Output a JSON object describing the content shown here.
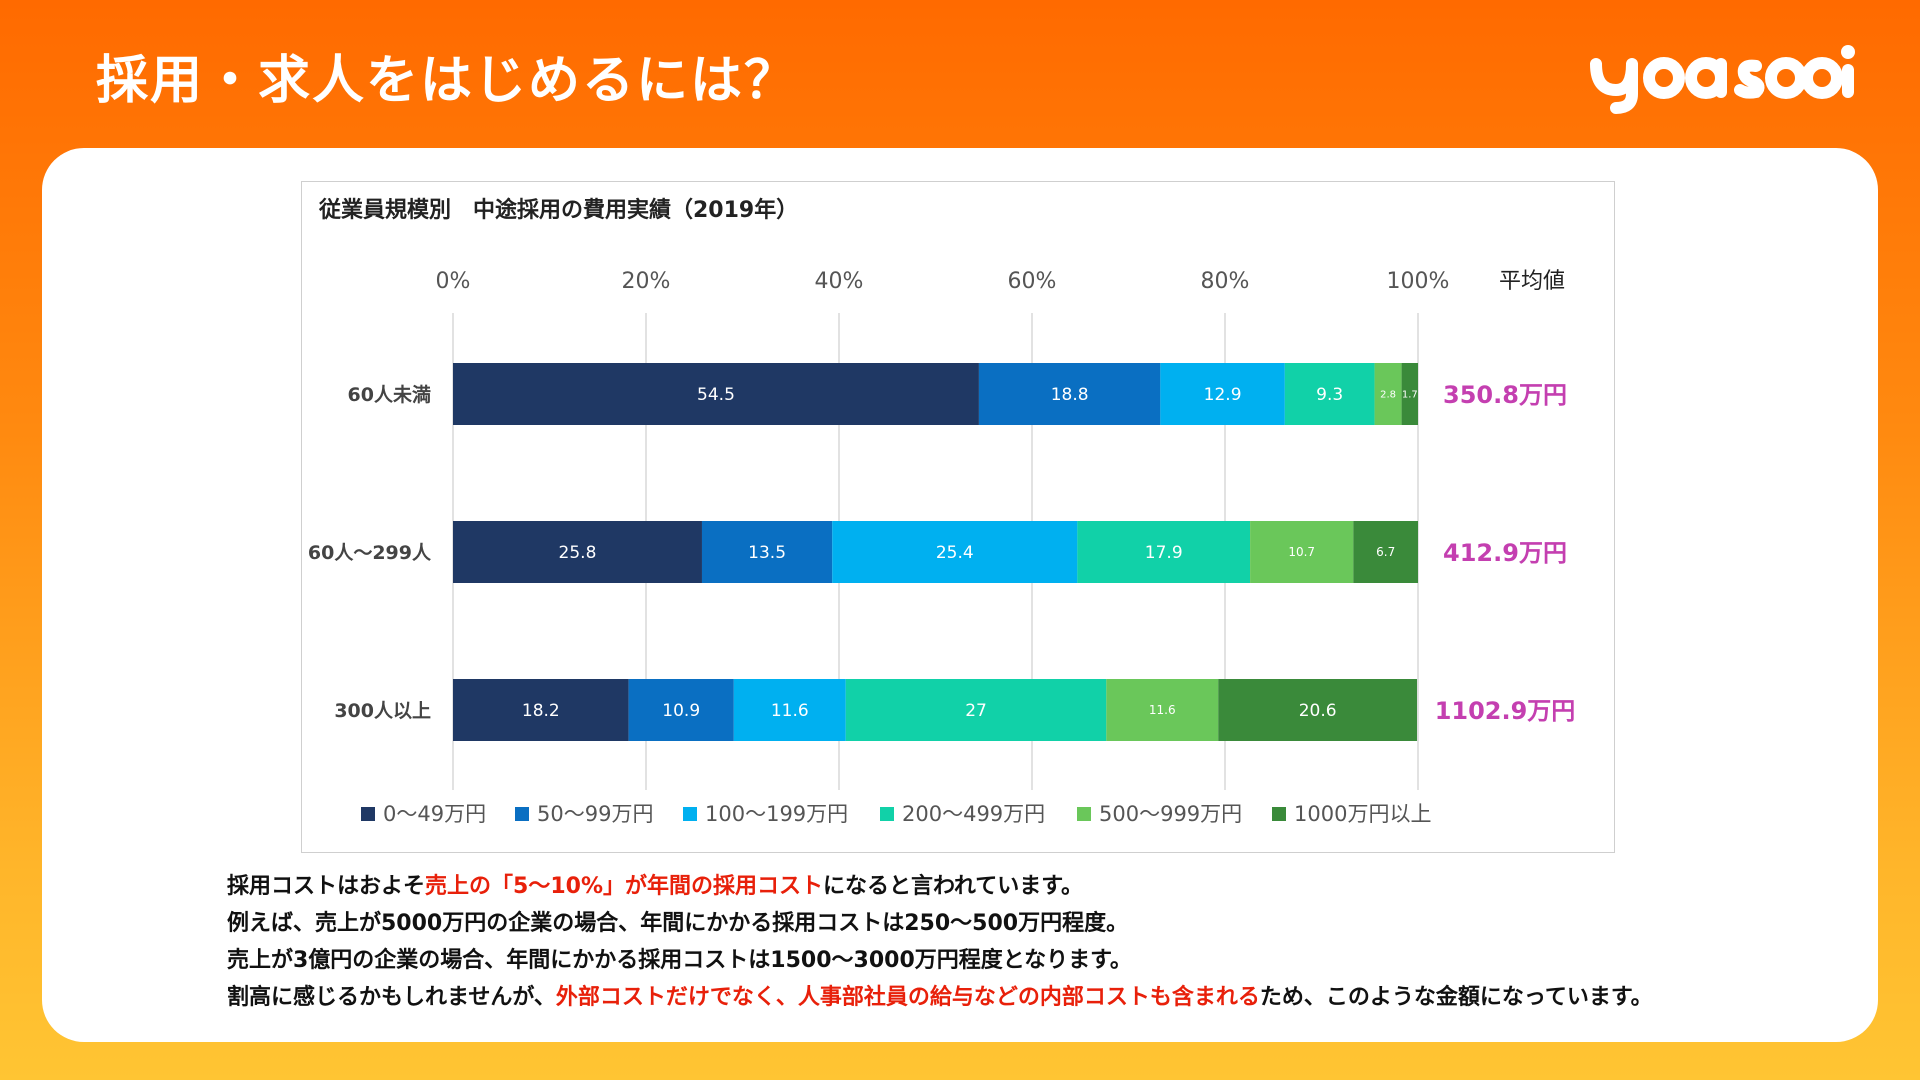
{
  "header": {
    "title": "採用・求人をはじめるには？",
    "logo_text": "yoasobi"
  },
  "colors": {
    "title_text": "#ffffff",
    "highlight": "#e8200a",
    "average_value": "#c43fb0",
    "series": [
      "#1f3864",
      "#0a6fc2",
      "#00b0f0",
      "#11d1a8",
      "#6ac75a",
      "#3a8a3a"
    ]
  },
  "chart_data": {
    "type": "bar",
    "orientation": "horizontal-stacked-100",
    "title": "従業員規模別　中途採用の費用実績（2019年）",
    "x_ticks": [
      "0%",
      "20%",
      "40%",
      "60%",
      "80%",
      "100%"
    ],
    "xlim": [
      0,
      100
    ],
    "average_header": "平均値",
    "categories": [
      "60人未満",
      "60人～299人",
      "300人以上"
    ],
    "series": [
      {
        "name": "0～49万円",
        "values": [
          54.5,
          25.8,
          18.2
        ]
      },
      {
        "name": "50～99万円",
        "values": [
          18.8,
          13.5,
          10.9
        ]
      },
      {
        "name": "100～199万円",
        "values": [
          12.9,
          25.4,
          11.6
        ]
      },
      {
        "name": "200～499万円",
        "values": [
          9.3,
          17.9,
          27
        ]
      },
      {
        "name": "500～999万円",
        "values": [
          2.8,
          10.7,
          11.6
        ]
      },
      {
        "name": "1000万円以上",
        "values": [
          1.7,
          6.7,
          20.6
        ]
      }
    ],
    "averages": [
      "350.8万円",
      "412.9万円",
      "1102.9万円"
    ],
    "legend": "bottom",
    "grid": true
  },
  "text": {
    "lines": [
      [
        {
          "text": "採用コストはおよそ",
          "red": false
        },
        {
          "text": "売上の「5～10%」が年間の採用コスト",
          "red": true
        },
        {
          "text": "になると言われています。",
          "red": false
        }
      ],
      [
        {
          "text": "例えば、売上が5000万円の企業の場合、年間にかかる採用コストは250～500万円程度。",
          "red": false
        }
      ],
      [
        {
          "text": "売上が3億円の企業の場合、年間にかかる採用コストは1500～3000万円程度となります。",
          "red": false
        }
      ],
      [
        {
          "text": "割高に感じるかもしれませんが、",
          "red": false
        },
        {
          "text": "外部コストだけでなく、人事部社員の給与などの内部コストも含まれる",
          "red": true
        },
        {
          "text": "ため、このような金額になっています。",
          "red": false
        }
      ]
    ]
  }
}
